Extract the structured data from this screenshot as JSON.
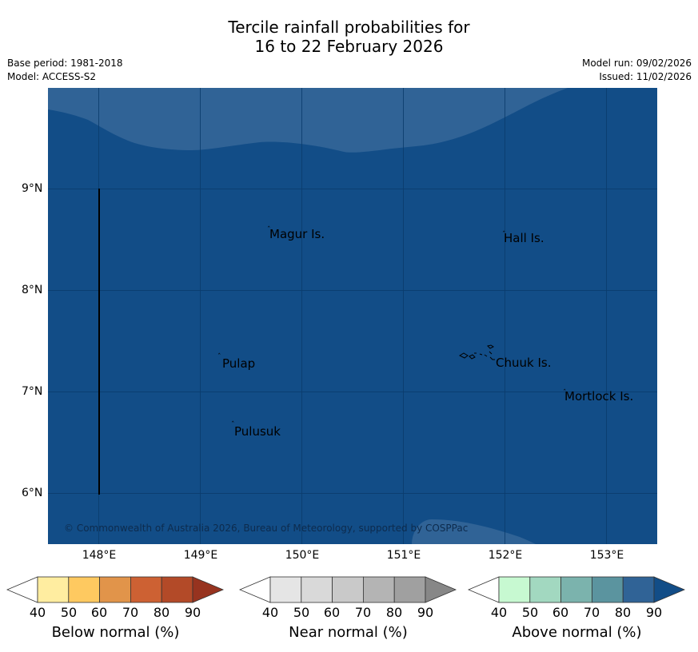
{
  "title": {
    "line1": "Tercile rainfall probabilities for",
    "line2": "16 to 22 February 2026"
  },
  "meta": {
    "base_period": "Base period: 1981-2018",
    "model": "Model: ACCESS-S2",
    "model_run": "Model run: 09/02/2026",
    "issued": "Issued: 11/02/2026"
  },
  "map": {
    "places": {
      "magur": "Magur Is.",
      "hall": "Hall Is.",
      "pulap": "Pulap",
      "chuuk": "Chuuk Is.",
      "mortlock": "Mortlock Is.",
      "pulusuk": "Pulusuk"
    },
    "copyright": "© Commonwealth of Australia 2026, Bureau of Meteorology, supported by COSPPac",
    "y_ticks": [
      "9°N",
      "8°N",
      "7°N",
      "6°N"
    ],
    "x_ticks": [
      "148°E",
      "149°E",
      "150°E",
      "151°E",
      "152°E",
      "153°E"
    ],
    "colors": {
      "dominant": "#124d87",
      "secondary": "#306396"
    }
  },
  "legends": [
    {
      "label": "Below normal (%)",
      "ticks": [
        "40",
        "50",
        "60",
        "70",
        "80",
        "90"
      ],
      "colors": [
        "#ffffff",
        "#ffeda0",
        "#fec960",
        "#e1944a",
        "#cd6133",
        "#b34a28",
        "#97331f"
      ]
    },
    {
      "label": "Near normal (%)",
      "ticks": [
        "40",
        "50",
        "60",
        "70",
        "80",
        "90"
      ],
      "colors": [
        "#ffffff",
        "#e5e5e5",
        "#d9d9d9",
        "#c9c9c9",
        "#b4b4b4",
        "#a0a0a0",
        "#878787"
      ]
    },
    {
      "label": "Above normal (%)",
      "ticks": [
        "40",
        "50",
        "60",
        "70",
        "80",
        "90"
      ],
      "colors": [
        "#ffffff",
        "#c7f9d1",
        "#a2d8c0",
        "#7bb3ad",
        "#5b949f",
        "#306396",
        "#124d87"
      ]
    }
  ]
}
